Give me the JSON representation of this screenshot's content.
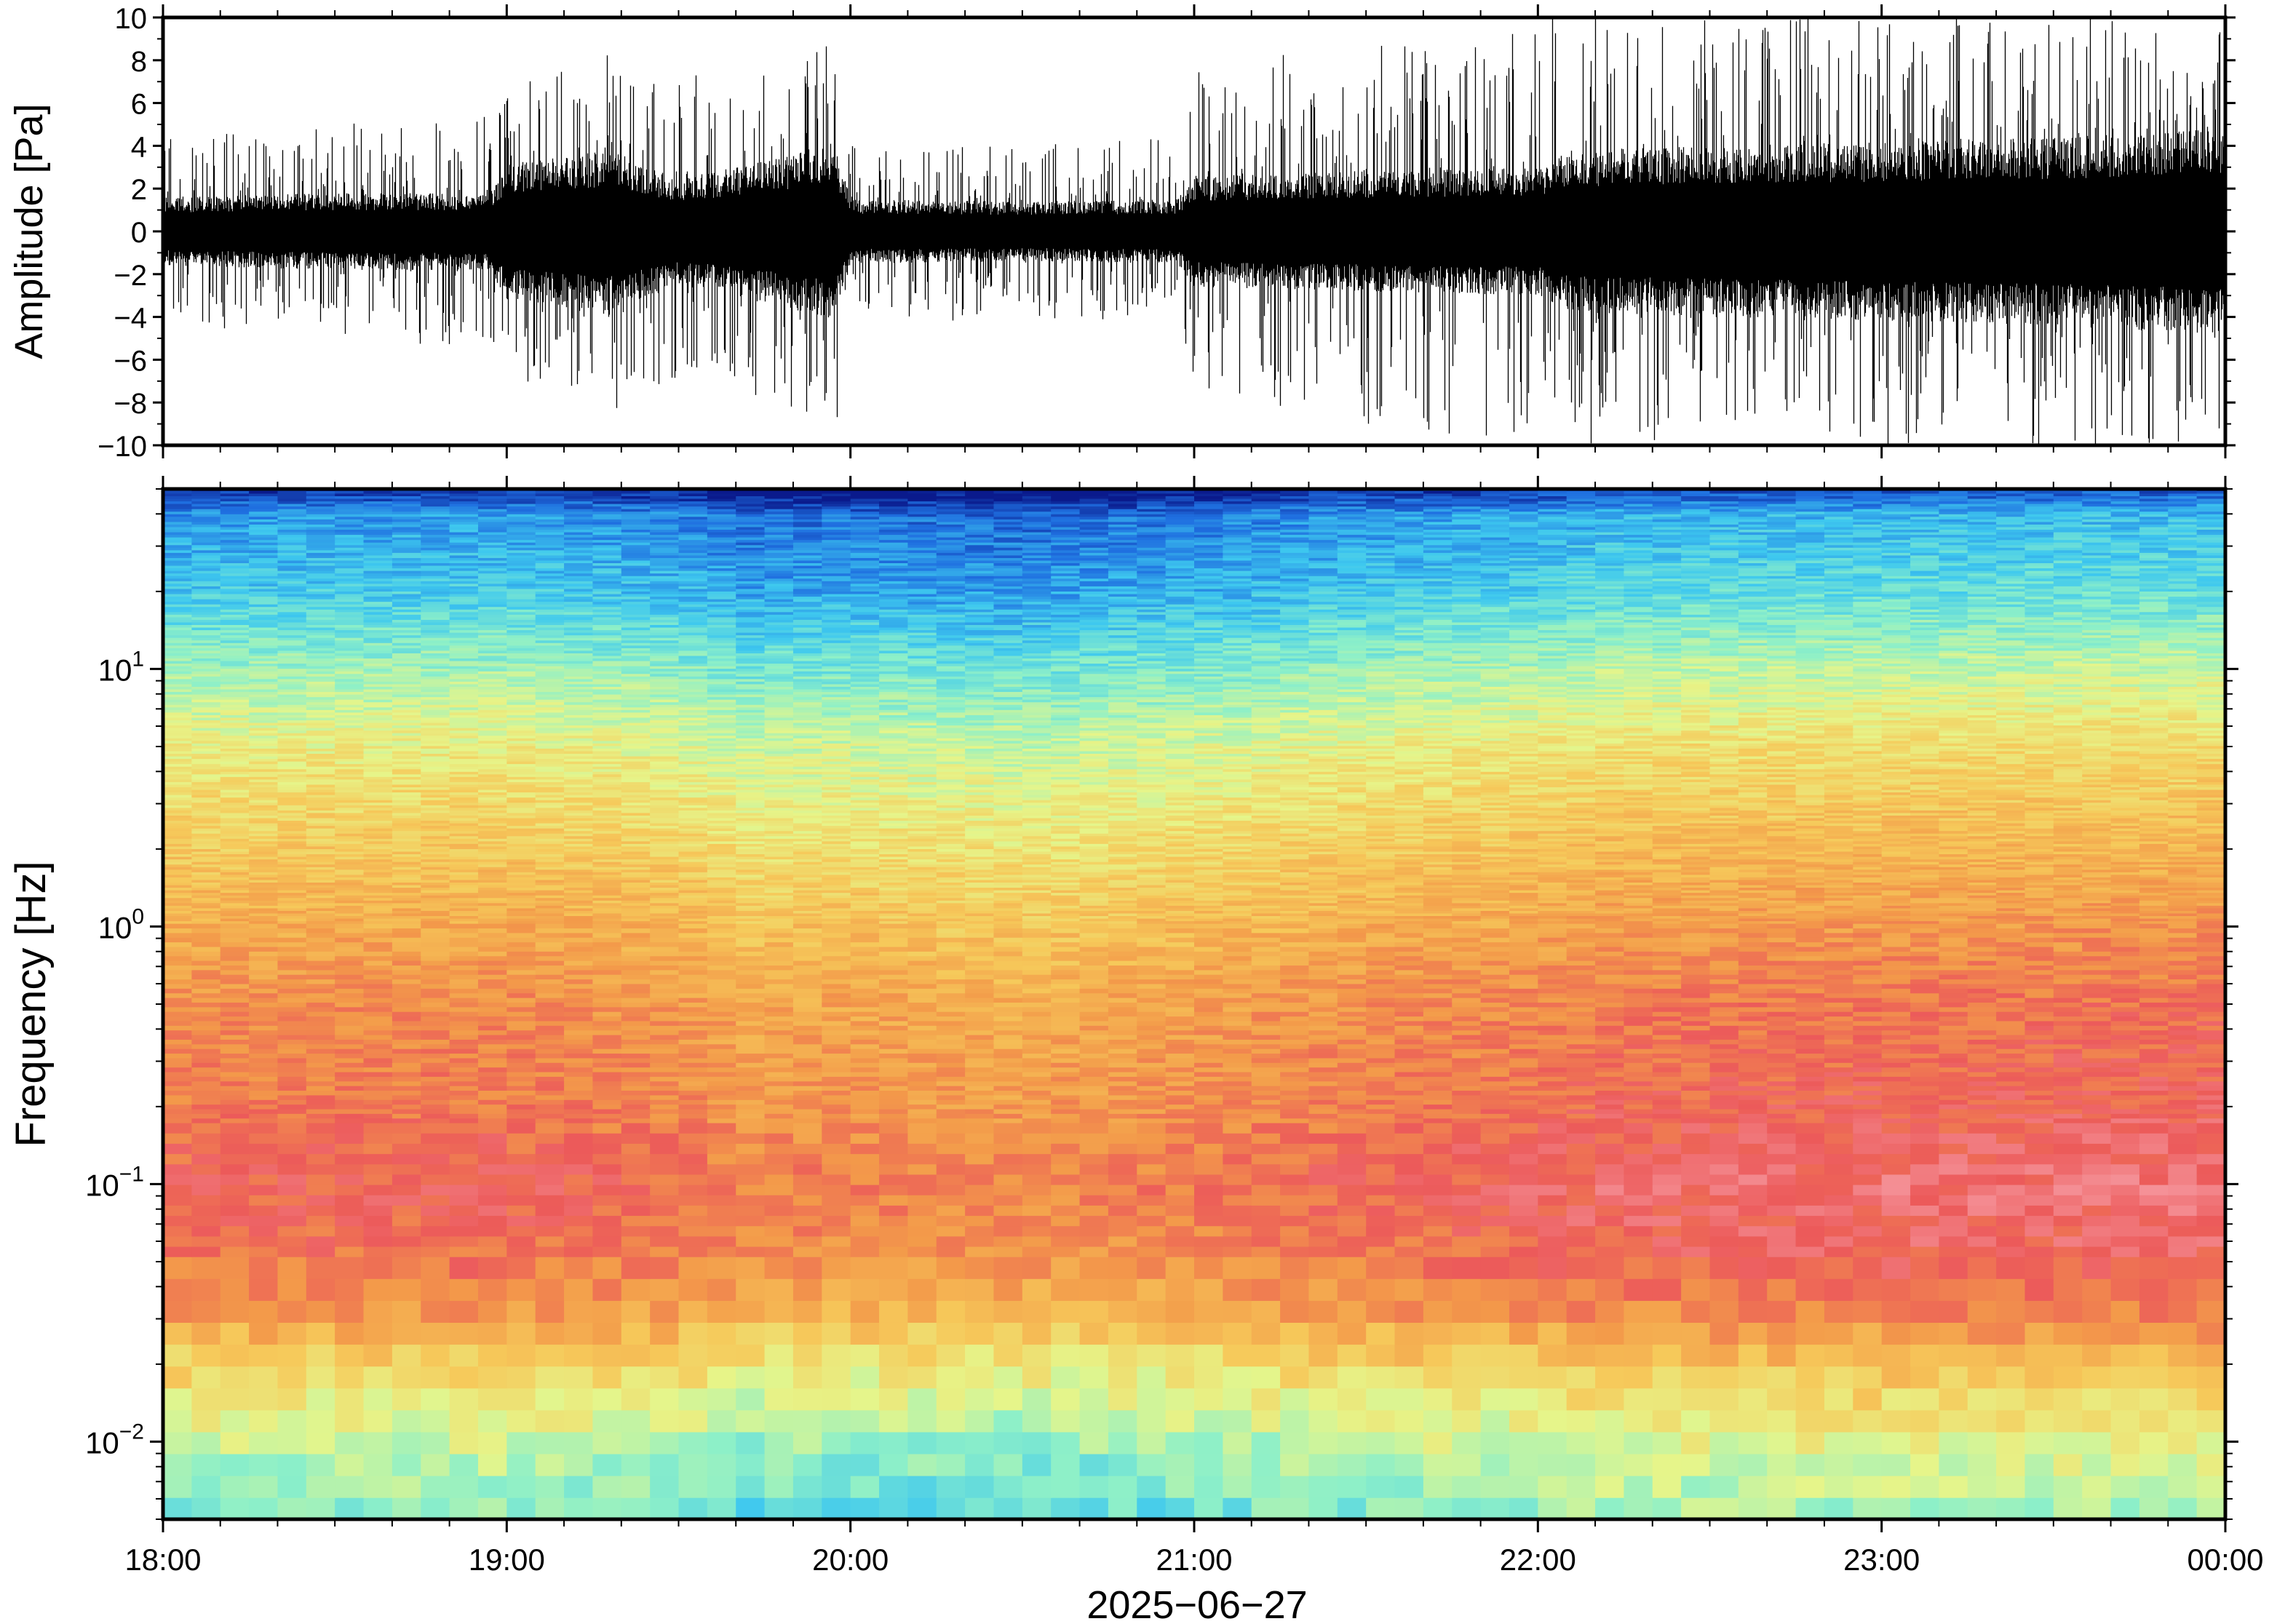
{
  "chart_data": [
    {
      "type": "line",
      "name": "waveform",
      "ylabel": "Amplitude [Pa]",
      "ylim": [
        -10,
        10
      ],
      "yticks": [
        -10,
        -8,
        -6,
        -4,
        -2,
        0,
        2,
        4,
        6,
        8,
        10
      ],
      "ytick_labels": [
        "−10",
        "−8",
        "−6",
        "−4",
        "−2",
        "0",
        "2",
        "4",
        "6",
        "8",
        "10"
      ],
      "xlim_hours": [
        18,
        24
      ],
      "color": "#000000",
      "envelope": {
        "x_hours": [
          18.0,
          18.5,
          18.95,
          19.0,
          19.3,
          19.5,
          19.8,
          19.95,
          20.0,
          20.5,
          20.95,
          21.0,
          21.5,
          22.0,
          22.1,
          22.5,
          23.0,
          23.5,
          24.0
        ],
        "typical_amplitude": [
          1.6,
          1.8,
          1.8,
          3.2,
          3.8,
          2.5,
          3.5,
          4.2,
          1.5,
          1.4,
          1.5,
          2.6,
          2.8,
          3.0,
          3.8,
          4.0,
          4.2,
          4.4,
          4.8
        ],
        "peak_amplitude": [
          4.5,
          5.0,
          5.5,
          7.0,
          8.5,
          7.0,
          9.0,
          10.0,
          4.5,
          4.0,
          4.5,
          8.0,
          9.0,
          10.0,
          10.0,
          10.0,
          10.0,
          10.0,
          10.0
        ]
      }
    },
    {
      "type": "heatmap",
      "name": "spectrogram",
      "ylabel": "Frequency [Hz]",
      "yscale": "log",
      "ylim": [
        0.005,
        50
      ],
      "yticks": [
        0.01,
        0.1,
        1,
        10
      ],
      "ytick_labels": [
        {
          "base": "10",
          "exp": "−2"
        },
        {
          "base": "10",
          "exp": "−1"
        },
        {
          "base": "10",
          "exp": "0"
        },
        {
          "base": "10",
          "exp": "1"
        }
      ],
      "xlim_hours": [
        18,
        24
      ],
      "xticks_hours": [
        18,
        19,
        20,
        21,
        22,
        23,
        24
      ],
      "xtick_labels": [
        "18:00",
        "19:00",
        "20:00",
        "21:00",
        "22:00",
        "23:00",
        "00:00"
      ],
      "xlabel": "2025−06−27",
      "colormap": [
        "#0a1a8c",
        "#1f6fe0",
        "#3ec8ef",
        "#8ef0c8",
        "#e6f58a",
        "#f6c95a",
        "#f39a4a",
        "#ec5a5a",
        "#f7a0a8"
      ],
      "level_profile": {
        "log10_freq": [
          1.7,
          1.6,
          1.3,
          1.0,
          0.7,
          0.3,
          0.0,
          -0.3,
          -0.7,
          -1.0,
          -1.3,
          -1.5,
          -1.7,
          -1.9,
          -2.1,
          -2.3
        ],
        "level": [
          0.02,
          0.18,
          0.26,
          0.4,
          0.52,
          0.62,
          0.7,
          0.77,
          0.81,
          0.86,
          0.82,
          0.74,
          0.6,
          0.5,
          0.42,
          0.36
        ]
      },
      "time_level_offsets": {
        "x_hours": [
          18.0,
          19.0,
          19.5,
          19.7,
          20.0,
          20.5,
          21.0,
          21.5,
          22.0,
          22.2,
          23.0,
          24.0
        ],
        "offset": [
          0.0,
          0.01,
          -0.02,
          -0.06,
          -0.05,
          -0.07,
          -0.04,
          0.0,
          0.02,
          0.04,
          0.05,
          0.06
        ]
      }
    }
  ]
}
